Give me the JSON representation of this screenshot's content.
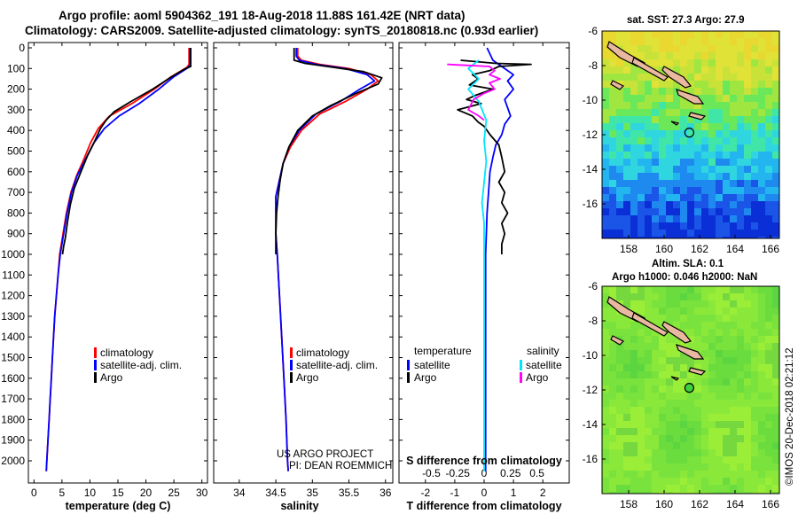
{
  "title": {
    "line1": "Argo profile: aoml 5904362_191 18-Aug-2018 11.88S 161.42E (NRT data)",
    "line2": "Climatology: CARS2009. Satellite-adjusted climatology: synTS_20180818.nc (0.93d earlier)"
  },
  "colors": {
    "climatology": "#ff0000",
    "satellite": "#0000ff",
    "argo": "#000000",
    "salinity_satellite": "#00e5ff",
    "salinity_argo": "#ff00ff"
  },
  "chart_data": [
    {
      "id": "temperature",
      "type": "line",
      "xlabel": "temperature (deg C)",
      "xlim": [
        -1,
        31
      ],
      "xticks": [
        0,
        5,
        10,
        15,
        20,
        25,
        30
      ],
      "ylim": [
        2080,
        0
      ],
      "yticks": [
        0,
        100,
        200,
        300,
        400,
        500,
        600,
        700,
        800,
        900,
        1000,
        1100,
        1200,
        1300,
        1400,
        1500,
        1600,
        1700,
        1800,
        1900,
        2000
      ],
      "legend": [
        "climatology",
        "satellite-adj. clim.",
        "Argo"
      ],
      "series": [
        {
          "name": "climatology",
          "color": "#ff0000",
          "points": [
            [
              27.7,
              0
            ],
            [
              27.7,
              80
            ],
            [
              27.3,
              95
            ],
            [
              24.5,
              140
            ],
            [
              21.5,
              200
            ],
            [
              17.5,
              270
            ],
            [
              13.5,
              330
            ],
            [
              11.5,
              390
            ],
            [
              10.1,
              460
            ],
            [
              8.9,
              540
            ],
            [
              7.6,
              620
            ],
            [
              6.6,
              700
            ],
            [
              5.8,
              800
            ],
            [
              5.2,
              900
            ],
            [
              4.6,
              1000
            ],
            [
              4.3,
              1100
            ],
            [
              4.0,
              1200
            ],
            [
              3.7,
              1300
            ],
            [
              3.5,
              1400
            ],
            [
              3.3,
              1500
            ],
            [
              3.1,
              1600
            ],
            [
              2.9,
              1700
            ],
            [
              2.7,
              1800
            ],
            [
              2.5,
              1900
            ],
            [
              2.3,
              2000
            ],
            [
              2.2,
              2050
            ]
          ]
        },
        {
          "name": "satellite-adj. clim.",
          "color": "#0000ff",
          "points": [
            [
              27.9,
              0
            ],
            [
              27.9,
              80
            ],
            [
              27.6,
              95
            ],
            [
              25.0,
              140
            ],
            [
              22.3,
              200
            ],
            [
              18.8,
              270
            ],
            [
              15.2,
              330
            ],
            [
              12.6,
              390
            ],
            [
              10.7,
              460
            ],
            [
              9.2,
              540
            ],
            [
              7.7,
              620
            ],
            [
              6.7,
              700
            ],
            [
              5.9,
              800
            ],
            [
              5.3,
              900
            ],
            [
              4.7,
              1000
            ],
            [
              4.3,
              1100
            ],
            [
              4.0,
              1200
            ],
            [
              3.7,
              1300
            ],
            [
              3.5,
              1400
            ],
            [
              3.3,
              1500
            ],
            [
              3.1,
              1600
            ],
            [
              2.9,
              1700
            ],
            [
              2.7,
              1800
            ],
            [
              2.5,
              1900
            ],
            [
              2.3,
              2000
            ],
            [
              2.2,
              2050
            ]
          ]
        },
        {
          "name": "Argo",
          "color": "#000000",
          "points": [
            [
              28.0,
              0
            ],
            [
              28.0,
              90
            ],
            [
              27.1,
              100
            ],
            [
              24.6,
              140
            ],
            [
              21.2,
              200
            ],
            [
              17.3,
              260
            ],
            [
              14.3,
              310
            ],
            [
              12.9,
              350
            ],
            [
              11.9,
              390
            ],
            [
              10.7,
              460
            ],
            [
              9.6,
              520
            ],
            [
              8.4,
              600
            ],
            [
              7.2,
              680
            ],
            [
              6.5,
              760
            ],
            [
              6.0,
              840
            ],
            [
              5.6,
              920
            ],
            [
              5.3,
              960
            ],
            [
              5.1,
              1000
            ]
          ]
        }
      ]
    },
    {
      "id": "salinity",
      "type": "line",
      "xlabel": "salinity",
      "xlim": [
        33.65,
        36.1
      ],
      "xticks": [
        34,
        34.5,
        35,
        35.5,
        36
      ],
      "ylim": [
        2080,
        0
      ],
      "legend": [
        "climatology",
        "satellite-adj. clim.",
        "Argo"
      ],
      "credit": [
        "US ARGO PROJECT",
        "PI: DEAN ROEMMICH"
      ],
      "series": [
        {
          "name": "climatology",
          "color": "#ff0000",
          "points": [
            [
              34.8,
              0
            ],
            [
              34.8,
              40
            ],
            [
              34.85,
              60
            ],
            [
              35.1,
              80
            ],
            [
              35.5,
              100
            ],
            [
              35.8,
              130
            ],
            [
              35.9,
              160
            ],
            [
              35.75,
              200
            ],
            [
              35.45,
              260
            ],
            [
              35.1,
              320
            ],
            [
              34.85,
              400
            ],
            [
              34.7,
              480
            ],
            [
              34.6,
              560
            ],
            [
              34.55,
              640
            ],
            [
              34.5,
              720
            ],
            [
              34.5,
              800
            ],
            [
              34.5,
              900
            ],
            [
              34.52,
              1000
            ],
            [
              34.55,
              1200
            ],
            [
              34.58,
              1400
            ],
            [
              34.61,
              1600
            ],
            [
              34.64,
              1800
            ],
            [
              34.66,
              2000
            ],
            [
              34.67,
              2050
            ]
          ]
        },
        {
          "name": "satellite-adj. clim.",
          "color": "#0000ff",
          "points": [
            [
              34.78,
              0
            ],
            [
              34.78,
              40
            ],
            [
              34.82,
              60
            ],
            [
              35.05,
              80
            ],
            [
              35.45,
              100
            ],
            [
              35.75,
              130
            ],
            [
              35.85,
              160
            ],
            [
              35.65,
              200
            ],
            [
              35.38,
              260
            ],
            [
              35.05,
              320
            ],
            [
              34.82,
              400
            ],
            [
              34.68,
              480
            ],
            [
              34.6,
              560
            ],
            [
              34.55,
              640
            ],
            [
              34.5,
              720
            ],
            [
              34.5,
              800
            ],
            [
              34.5,
              900
            ],
            [
              34.52,
              1000
            ],
            [
              34.55,
              1200
            ],
            [
              34.58,
              1400
            ],
            [
              34.61,
              1600
            ],
            [
              34.64,
              1800
            ],
            [
              34.66,
              2000
            ],
            [
              34.67,
              2050
            ]
          ]
        },
        {
          "name": "Argo",
          "color": "#000000",
          "points": [
            [
              34.75,
              0
            ],
            [
              34.75,
              60
            ],
            [
              34.9,
              75
            ],
            [
              35.3,
              95
            ],
            [
              35.7,
              115
            ],
            [
              35.95,
              145
            ],
            [
              35.9,
              175
            ],
            [
              35.6,
              220
            ],
            [
              35.25,
              280
            ],
            [
              35.0,
              330
            ],
            [
              34.8,
              400
            ],
            [
              34.68,
              480
            ],
            [
              34.6,
              560
            ],
            [
              34.56,
              640
            ],
            [
              34.53,
              720
            ],
            [
              34.51,
              800
            ],
            [
              34.5,
              900
            ],
            [
              34.5,
              1000
            ]
          ]
        }
      ]
    },
    {
      "id": "difference",
      "type": "line",
      "xlabel": "T difference from climatology",
      "xlabel_top": "S difference from climatology",
      "xlim": [
        -2.9,
        2.9
      ],
      "xticks": [
        -2,
        -1,
        0,
        1,
        2
      ],
      "xticklabels": [
        "-2",
        "-1",
        "0",
        "1",
        "2"
      ],
      "sticks": [
        -0.5,
        -0.25,
        0,
        0.25,
        0.5
      ],
      "sticklabels": [
        "-0.5",
        "-0.25",
        "0",
        "0.25",
        "0.5"
      ],
      "ylim": [
        2080,
        0
      ],
      "legend_temperature": {
        "title": "temperature",
        "items": [
          "satellite",
          "Argo"
        ]
      },
      "legend_salinity": {
        "title": "salinity",
        "items": [
          "satellite",
          "Argo"
        ]
      },
      "series": [
        {
          "name": "T satellite",
          "color": "#0000ff",
          "points": [
            [
              0.1,
              0
            ],
            [
              0.3,
              60
            ],
            [
              0.6,
              90
            ],
            [
              1.0,
              130
            ],
            [
              0.8,
              160
            ],
            [
              1.0,
              200
            ],
            [
              0.7,
              250
            ],
            [
              0.8,
              290
            ],
            [
              0.9,
              330
            ],
            [
              0.7,
              370
            ],
            [
              0.6,
              420
            ],
            [
              0.4,
              470
            ],
            [
              0.3,
              530
            ],
            [
              0.2,
              600
            ],
            [
              0.15,
              700
            ],
            [
              0.1,
              800
            ],
            [
              0.05,
              1000
            ],
            [
              0.05,
              1500
            ],
            [
              0.05,
              2000
            ],
            [
              0.05,
              2050
            ]
          ]
        },
        {
          "name": "T Argo",
          "color": "#000000",
          "points": [
            [
              -0.8,
              60
            ],
            [
              0.4,
              75
            ],
            [
              1.6,
              80
            ],
            [
              0.5,
              90
            ],
            [
              0.2,
              110
            ],
            [
              -0.4,
              130
            ],
            [
              -0.2,
              150
            ],
            [
              -0.5,
              180
            ],
            [
              0.3,
              200
            ],
            [
              -0.3,
              230
            ],
            [
              -0.6,
              250
            ],
            [
              -0.1,
              270
            ],
            [
              -0.9,
              300
            ],
            [
              -0.4,
              330
            ],
            [
              -0.2,
              360
            ],
            [
              0,
              380
            ],
            [
              0.2,
              420
            ],
            [
              0.5,
              470
            ],
            [
              0.6,
              530
            ],
            [
              0.7,
              600
            ],
            [
              0.5,
              650
            ],
            [
              0.7,
              700
            ],
            [
              0.6,
              750
            ],
            [
              0.8,
              800
            ],
            [
              0.6,
              850
            ],
            [
              0.7,
              900
            ],
            [
              0.6,
              950
            ],
            [
              0.6,
              1000
            ]
          ]
        },
        {
          "name": "S satellite",
          "color": "#00e5ff",
          "points": [
            [
              -0.05,
              60
            ],
            [
              -0.1,
              80
            ],
            [
              -0.15,
              100
            ],
            [
              -0.05,
              150
            ],
            [
              -0.15,
              200
            ],
            [
              -0.05,
              260
            ],
            [
              0.02,
              350
            ],
            [
              0.0,
              450
            ],
            [
              0.02,
              550
            ],
            [
              0.0,
              650
            ],
            [
              -0.02,
              750
            ],
            [
              0.0,
              850
            ],
            [
              0.0,
              1000
            ],
            [
              0.0,
              1200
            ],
            [
              0.0,
              1500
            ],
            [
              0.0,
              2050
            ]
          ]
        },
        {
          "name": "S Argo",
          "color": "#ff00ff",
          "points": [
            [
              -0.35,
              80
            ],
            [
              -0.15,
              85
            ],
            [
              0.05,
              90
            ],
            [
              0.1,
              110
            ],
            [
              0.05,
              130
            ],
            [
              0.15,
              150
            ],
            [
              0.05,
              170
            ],
            [
              0.1,
              200
            ],
            [
              0.0,
              220
            ],
            [
              -0.1,
              250
            ],
            [
              -0.15,
              300
            ],
            [
              -0.05,
              330
            ],
            [
              0.0,
              350
            ]
          ]
        }
      ]
    }
  ],
  "maps": [
    {
      "id": "sst-map",
      "title": "sat. SST: 27.3  Argo: 27.9",
      "xticks": [
        "158",
        "160",
        "162",
        "164",
        "166"
      ],
      "yticks": [
        "-6",
        "-8",
        "-10",
        "-12",
        "-14",
        "-16"
      ],
      "lon": [
        156.5,
        166.5
      ],
      "lat": [
        -6,
        -18
      ],
      "argo_position": {
        "lon": 161.42,
        "lat": -11.88
      }
    },
    {
      "id": "sla-map",
      "title_line1": "Altim. SLA: 0.1",
      "title_line2": "Argo h1000: 0.046 h2000: NaN",
      "xticks": [
        "158",
        "160",
        "162",
        "164",
        "166"
      ],
      "yticks": [
        "-6",
        "-8",
        "-10",
        "-12",
        "-14",
        "-16"
      ],
      "lon": [
        156.5,
        166.5
      ],
      "lat": [
        -6,
        -18
      ],
      "argo_position": {
        "lon": 161.42,
        "lat": -11.88
      }
    }
  ],
  "footer": "©IMOS 20-Dec-2018 02:21:12"
}
